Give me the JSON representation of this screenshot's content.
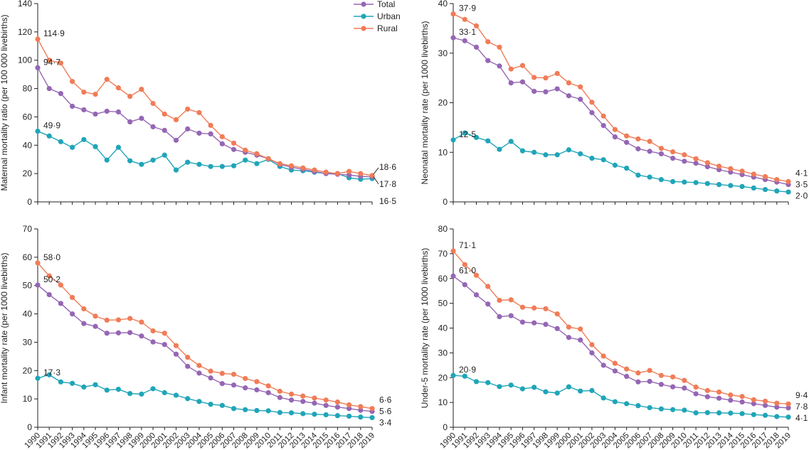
{
  "legend": {
    "entries": [
      {
        "name": "Total",
        "color": "#9566b4"
      },
      {
        "name": "Urban",
        "color": "#1fa5b8"
      },
      {
        "name": "Rural",
        "color": "#f07c57"
      }
    ],
    "placement": "top-right of first panel"
  },
  "colors": {
    "Total": "#9566b4",
    "Urban": "#1fa5b8",
    "Rural": "#f07c57",
    "axis": "#231f20"
  },
  "chart_data": [
    {
      "type": "line",
      "ylabel": "Maternal mortality ratio (per 100 000 livebirths)",
      "ylim": [
        0,
        140
      ],
      "yticks": [
        0,
        20,
        40,
        60,
        80,
        100,
        120,
        140
      ],
      "x": [
        1990,
        1991,
        1992,
        1993,
        1994,
        1995,
        1996,
        1997,
        1998,
        1999,
        2000,
        2001,
        2002,
        2003,
        2004,
        2005,
        2006,
        2007,
        2008,
        2009,
        2010,
        2011,
        2012,
        2013,
        2014,
        2015,
        2016,
        2017,
        2018,
        2019
      ],
      "grid": false,
      "series": [
        {
          "name": "Total",
          "values": [
            94.7,
            80,
            76.5,
            67.5,
            65,
            62,
            64,
            63.5,
            56.5,
            59,
            53,
            50.5,
            43.5,
            51.5,
            48.5,
            48,
            41,
            37,
            35,
            33,
            30.5,
            26.5,
            24.5,
            23,
            21.5,
            20,
            19.5,
            19,
            18,
            17.8
          ]
        },
        {
          "name": "Urban",
          "values": [
            49.9,
            46.5,
            42.5,
            38.5,
            44,
            39,
            29.5,
            38.5,
            29,
            26.5,
            29.5,
            33,
            22.5,
            28,
            26.5,
            25,
            25,
            25.5,
            29.5,
            27,
            30,
            25,
            22.5,
            22,
            21,
            20,
            20,
            17,
            16,
            16.5
          ]
        },
        {
          "name": "Rural",
          "values": [
            114.9,
            100,
            98,
            85,
            77.5,
            76,
            86.5,
            80.5,
            74.5,
            79.5,
            69.5,
            62,
            58,
            65.5,
            63,
            54,
            46,
            41.5,
            36.5,
            34,
            30.5,
            27,
            25.5,
            24,
            22.5,
            21,
            20,
            21.5,
            20,
            18.6
          ]
        }
      ],
      "annotations": [
        {
          "text": "114·9",
          "x": 1990,
          "y": 114.9
        },
        {
          "text": "94·7",
          "x": 1990,
          "y": 94.7
        },
        {
          "text": "49·9",
          "x": 1990,
          "y": 49.9
        },
        {
          "text": "18·6",
          "x": 2019,
          "y": 18.6
        },
        {
          "text": "17·8",
          "x": 2019,
          "y": 17.8
        },
        {
          "text": "16·5",
          "x": 2019,
          "y": 16.5
        }
      ]
    },
    {
      "type": "line",
      "ylabel": "Neonatal mortality rate (per 1000 livebirths)",
      "ylim": [
        0,
        40
      ],
      "yticks": [
        0,
        10,
        20,
        30,
        40
      ],
      "x": [
        1990,
        1991,
        1992,
        1993,
        1994,
        1995,
        1996,
        1997,
        1998,
        1999,
        2000,
        2001,
        2002,
        2003,
        2004,
        2005,
        2006,
        2007,
        2008,
        2009,
        2010,
        2011,
        2012,
        2013,
        2014,
        2015,
        2016,
        2017,
        2018,
        2019
      ],
      "grid": false,
      "series": [
        {
          "name": "Total",
          "values": [
            33.1,
            32.5,
            31.2,
            28.5,
            27.4,
            24,
            24.2,
            22.3,
            22.2,
            22.8,
            21.4,
            20.7,
            18,
            15.4,
            13.1,
            12,
            10.7,
            10.2,
            9.7,
            8.8,
            8.2,
            7.8,
            7.1,
            6.5,
            6,
            5.5,
            5,
            4.5,
            4,
            3.5
          ]
        },
        {
          "name": "Urban",
          "values": [
            12.5,
            13.9,
            13,
            12.3,
            10.6,
            12.2,
            10.3,
            10,
            9.5,
            9.5,
            10.5,
            9.7,
            8.8,
            8.5,
            7.4,
            6.8,
            5.4,
            5,
            4.5,
            4.1,
            4,
            3.9,
            3.7,
            3.5,
            3.3,
            3.1,
            2.8,
            2.5,
            2.2,
            2.0
          ]
        },
        {
          "name": "Rural",
          "values": [
            37.9,
            36.8,
            35.5,
            32.3,
            31.2,
            26.8,
            27.5,
            25.1,
            25,
            25.9,
            24,
            23.2,
            20.1,
            17.3,
            14.6,
            13.3,
            12.7,
            12.2,
            10.8,
            10.1,
            9.5,
            8.7,
            7.9,
            7.2,
            6.7,
            6.2,
            5.6,
            5.1,
            4.5,
            4.1
          ]
        }
      ],
      "annotations": [
        {
          "text": "37·9",
          "x": 1990,
          "y": 37.9
        },
        {
          "text": "33·1",
          "x": 1990,
          "y": 33.1
        },
        {
          "text": "12·5",
          "x": 1990,
          "y": 12.5
        },
        {
          "text": "4·1",
          "x": 2019,
          "y": 4.1
        },
        {
          "text": "3·5",
          "x": 2019,
          "y": 3.5
        },
        {
          "text": "2·0",
          "x": 2019,
          "y": 2.0
        }
      ]
    },
    {
      "type": "line",
      "ylabel": "Infant mortality rate (per 1000 livebirths)",
      "ylim": [
        0,
        70
      ],
      "yticks": [
        0,
        10,
        20,
        30,
        40,
        50,
        60,
        70
      ],
      "x": [
        1990,
        1991,
        1992,
        1993,
        1994,
        1995,
        1996,
        1997,
        1998,
        1999,
        2000,
        2001,
        2002,
        2003,
        2004,
        2005,
        2006,
        2007,
        2008,
        2009,
        2010,
        2011,
        2012,
        2013,
        2014,
        2015,
        2016,
        2017,
        2018,
        2019
      ],
      "xticks": [
        "1990",
        "1991",
        "1992",
        "1993",
        "1994",
        "1995",
        "1996",
        "1997",
        "1998",
        "1999",
        "2000",
        "2001",
        "2002",
        "2003",
        "2004",
        "2005",
        "2006",
        "2007",
        "2008",
        "2009",
        "2010",
        "2011",
        "2012",
        "2013",
        "2014",
        "2015",
        "2016",
        "2017",
        "2018",
        "2019"
      ],
      "grid": false,
      "series": [
        {
          "name": "Total",
          "values": [
            50.2,
            46.8,
            43.7,
            40,
            36.6,
            35.6,
            33.2,
            33.3,
            33.4,
            32.2,
            30.1,
            29.2,
            25.8,
            21.5,
            19.1,
            17.4,
            15.4,
            14.9,
            13.9,
            13.2,
            12.2,
            10.5,
            9.6,
            9.1,
            8.5,
            7.7,
            7.1,
            6.6,
            6,
            5.6
          ]
        },
        {
          "name": "Urban",
          "values": [
            17.3,
            18.5,
            16,
            15.5,
            14.2,
            15,
            13.1,
            13.4,
            11.9,
            11.7,
            13.6,
            12.2,
            11.3,
            10.1,
            9.1,
            8.1,
            7.7,
            6.6,
            6.2,
            5.9,
            5.8,
            5.2,
            5.1,
            4.8,
            4.6,
            4.4,
            4.1,
            3.9,
            3.6,
            3.4
          ]
        },
        {
          "name": "Rural",
          "values": [
            58.0,
            53.4,
            50.2,
            45.8,
            41.8,
            39.2,
            37.8,
            37.9,
            38.4,
            37.1,
            34,
            33.2,
            28.8,
            24.7,
            21.8,
            19.8,
            19,
            18.7,
            17.2,
            16.1,
            14.6,
            12.7,
            11.7,
            11,
            10.3,
            9.6,
            8.9,
            7.9,
            7.3,
            6.6
          ]
        }
      ],
      "annotations": [
        {
          "text": "58·0",
          "x": 1990,
          "y": 58.0
        },
        {
          "text": "50·2",
          "x": 1990,
          "y": 50.2
        },
        {
          "text": "17·3",
          "x": 1990,
          "y": 17.3
        },
        {
          "text": "6·6",
          "x": 2019,
          "y": 6.6
        },
        {
          "text": "5·6",
          "x": 2019,
          "y": 5.6
        },
        {
          "text": "3·4",
          "x": 2019,
          "y": 3.4
        }
      ]
    },
    {
      "type": "line",
      "ylabel": "Under-5 mortality rate (per 1000 livebirths)",
      "ylim": [
        0,
        80
      ],
      "yticks": [
        0,
        10,
        20,
        30,
        40,
        50,
        60,
        70,
        80
      ],
      "x": [
        1990,
        1991,
        1992,
        1993,
        1994,
        1995,
        1996,
        1997,
        1998,
        1999,
        2000,
        2001,
        2002,
        2003,
        2004,
        2005,
        2006,
        2007,
        2008,
        2009,
        2010,
        2011,
        2012,
        2013,
        2014,
        2015,
        2016,
        2017,
        2018,
        2019
      ],
      "xticks": [
        "1990",
        "1991",
        "1992",
        "1993",
        "1994",
        "1995",
        "1996",
        "1997",
        "1998",
        "1999",
        "2000",
        "2001",
        "2002",
        "2003",
        "2004",
        "2005",
        "2006",
        "2007",
        "2008",
        "2009",
        "2010",
        "2011",
        "2012",
        "2013",
        "2014",
        "2015",
        "2016",
        "2017",
        "2018",
        "2019"
      ],
      "grid": false,
      "series": [
        {
          "name": "Total",
          "values": [
            61.0,
            57.5,
            53.4,
            49.7,
            44.6,
            45,
            42.4,
            42.1,
            41.5,
            39.8,
            36.2,
            35.2,
            30,
            25,
            22.7,
            20.5,
            18.3,
            18.5,
            17.3,
            16.3,
            15.8,
            13.5,
            12.3,
            11.7,
            10.9,
            10.2,
            9.5,
            8.8,
            8.1,
            7.8
          ]
        },
        {
          "name": "Urban",
          "values": [
            20.9,
            20.6,
            18.4,
            18,
            16.4,
            17,
            15.5,
            16.1,
            14.3,
            13.8,
            16.3,
            14.6,
            14.8,
            11.8,
            10.3,
            9.5,
            8.7,
            7.9,
            7.4,
            7.1,
            6.9,
            5.8,
            5.9,
            5.8,
            5.7,
            5.5,
            5.1,
            4.8,
            4.3,
            4.1
          ]
        },
        {
          "name": "Rural",
          "values": [
            71.1,
            65.6,
            61.3,
            56.8,
            51.2,
            51.4,
            48.4,
            48.1,
            47.8,
            45.7,
            40.4,
            39.6,
            33.3,
            28.7,
            25.8,
            23.5,
            21.9,
            22.9,
            20.9,
            20.3,
            18.9,
            16.2,
            14.8,
            14.2,
            13,
            12.4,
            11.1,
            10.5,
            9.7,
            9.4
          ]
        }
      ],
      "annotations": [
        {
          "text": "71·1",
          "x": 1990,
          "y": 71.1
        },
        {
          "text": "61·0",
          "x": 1990,
          "y": 61.0
        },
        {
          "text": "20·9",
          "x": 1990,
          "y": 20.9
        },
        {
          "text": "9·4",
          "x": 2019,
          "y": 9.4
        },
        {
          "text": "7·8",
          "x": 2019,
          "y": 7.8
        },
        {
          "text": "4·1",
          "x": 2019,
          "y": 4.1
        }
      ]
    }
  ]
}
